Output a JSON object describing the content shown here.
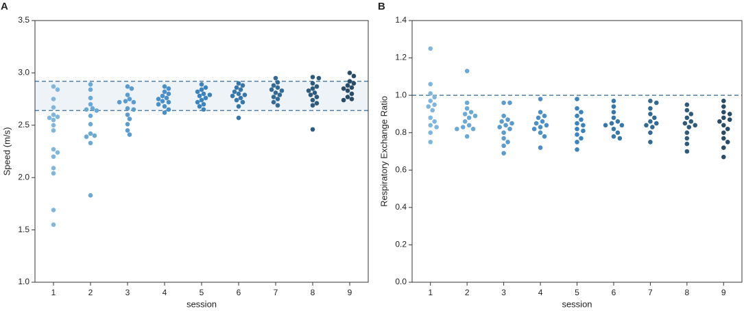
{
  "chart_data": [
    {
      "type": "strip",
      "panel_label": "A",
      "xlabel": "session",
      "ylabel": "Speed (m/s)",
      "categories": [
        "1",
        "2",
        "3",
        "4",
        "5",
        "6",
        "7",
        "8",
        "9"
      ],
      "colors": [
        "#7fb6dd",
        "#6aa8d6",
        "#5a9ccf",
        "#4a90c6",
        "#3a83bd",
        "#3577a9",
        "#336a93",
        "#2e5a7c",
        "#2a4b66"
      ],
      "values": [
        [
          2.87,
          2.84,
          2.75,
          2.67,
          2.6,
          2.58,
          2.57,
          2.55,
          2.5,
          2.45,
          2.27,
          2.24,
          2.2,
          2.09,
          2.04,
          1.69,
          1.55
        ],
        [
          2.89,
          2.84,
          2.76,
          2.7,
          2.66,
          2.65,
          2.64,
          2.59,
          2.51,
          2.42,
          2.4,
          2.39,
          2.33,
          1.83
        ],
        [
          2.87,
          2.85,
          2.79,
          2.75,
          2.73,
          2.72,
          2.72,
          2.66,
          2.65,
          2.6,
          2.56,
          2.51,
          2.45,
          2.41
        ],
        [
          2.87,
          2.85,
          2.82,
          2.8,
          2.78,
          2.76,
          2.75,
          2.73,
          2.72,
          2.7,
          2.68,
          2.65,
          2.62
        ],
        [
          2.89,
          2.86,
          2.84,
          2.82,
          2.8,
          2.79,
          2.78,
          2.76,
          2.74,
          2.72,
          2.7,
          2.68,
          2.65
        ],
        [
          2.9,
          2.88,
          2.86,
          2.84,
          2.82,
          2.8,
          2.79,
          2.78,
          2.76,
          2.74,
          2.72,
          2.68,
          2.57
        ],
        [
          2.95,
          2.91,
          2.88,
          2.86,
          2.84,
          2.83,
          2.81,
          2.79,
          2.77,
          2.75,
          2.72,
          2.69
        ],
        [
          2.96,
          2.95,
          2.9,
          2.87,
          2.85,
          2.83,
          2.81,
          2.79,
          2.77,
          2.74,
          2.71,
          2.69,
          2.46
        ],
        [
          3.0,
          2.97,
          2.92,
          2.9,
          2.88,
          2.86,
          2.85,
          2.83,
          2.8,
          2.77,
          2.75,
          2.74
        ]
      ],
      "ylim": [
        1.0,
        3.5
      ],
      "yticks": [
        {
          "value": 1.0,
          "label": "1.0"
        },
        {
          "value": 1.5,
          "label": "1.5"
        },
        {
          "value": 2.0,
          "label": "2.0"
        },
        {
          "value": 2.5,
          "label": "2.5"
        },
        {
          "value": 3.0,
          "label": "3.0"
        },
        {
          "value": 3.5,
          "label": "3.5"
        }
      ],
      "band": {
        "range": [
          2.64,
          2.92
        ],
        "color": "#edf3f7",
        "line_color": "#4d7fa3"
      }
    },
    {
      "type": "strip",
      "panel_label": "B",
      "xlabel": "session",
      "ylabel": "Respiratory Exchange Ratio",
      "categories": [
        "1",
        "2",
        "3",
        "4",
        "5",
        "6",
        "7",
        "8",
        "9"
      ],
      "colors": [
        "#7fb6dd",
        "#6aa8d6",
        "#5a9ccf",
        "#4a90c6",
        "#3a83bd",
        "#3577a9",
        "#336a93",
        "#2e5a7c",
        "#2a4b66"
      ],
      "values": [
        [
          1.25,
          1.06,
          1.01,
          0.99,
          0.97,
          0.95,
          0.94,
          0.92,
          0.88,
          0.86,
          0.84,
          0.83,
          0.8,
          0.75
        ],
        [
          1.13,
          0.96,
          0.93,
          0.91,
          0.9,
          0.89,
          0.88,
          0.86,
          0.84,
          0.83,
          0.82,
          0.82,
          0.78
        ],
        [
          0.96,
          0.96,
          0.89,
          0.87,
          0.86,
          0.85,
          0.84,
          0.83,
          0.82,
          0.8,
          0.77,
          0.75,
          0.73,
          0.69
        ],
        [
          0.98,
          0.91,
          0.89,
          0.88,
          0.86,
          0.85,
          0.84,
          0.83,
          0.82,
          0.8,
          0.78,
          0.72
        ],
        [
          0.98,
          0.93,
          0.91,
          0.89,
          0.87,
          0.85,
          0.84,
          0.82,
          0.81,
          0.79,
          0.77,
          0.75,
          0.71
        ],
        [
          0.97,
          0.94,
          0.91,
          0.88,
          0.86,
          0.85,
          0.84,
          0.84,
          0.82,
          0.8,
          0.78,
          0.77
        ],
        [
          0.97,
          0.96,
          0.93,
          0.9,
          0.88,
          0.86,
          0.85,
          0.84,
          0.83,
          0.8,
          0.75
        ],
        [
          0.95,
          0.92,
          0.9,
          0.88,
          0.86,
          0.85,
          0.84,
          0.83,
          0.8,
          0.77,
          0.74,
          0.7
        ],
        [
          0.97,
          0.94,
          0.91,
          0.9,
          0.88,
          0.87,
          0.86,
          0.84,
          0.82,
          0.8,
          0.77,
          0.75,
          0.72,
          0.67
        ]
      ],
      "ylim": [
        0.0,
        1.4
      ],
      "yticks": [
        {
          "value": 0.0,
          "label": "0.0"
        },
        {
          "value": 0.2,
          "label": "0.2"
        },
        {
          "value": 0.4,
          "label": "0.4"
        },
        {
          "value": 0.6,
          "label": "0.6"
        },
        {
          "value": 0.8,
          "label": "0.8"
        },
        {
          "value": 1.0,
          "label": "1.0"
        },
        {
          "value": 1.2,
          "label": "1.2"
        },
        {
          "value": 1.4,
          "label": "1.4"
        }
      ],
      "reference_line": {
        "value": 1.0,
        "line_color": "#4d7fa3"
      }
    }
  ]
}
